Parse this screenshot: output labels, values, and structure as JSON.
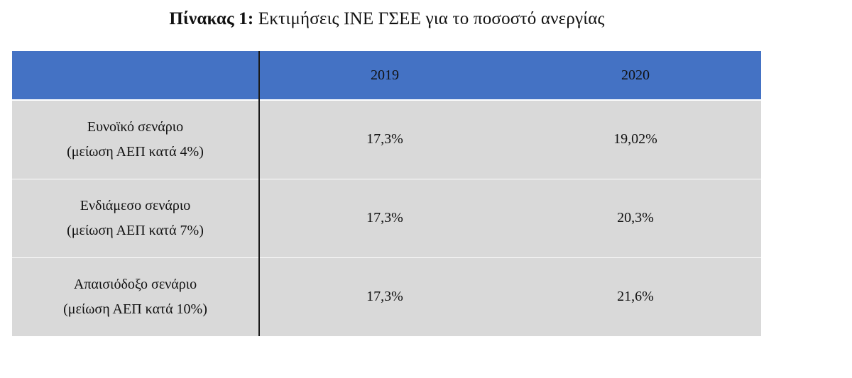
{
  "caption": {
    "label": "Πίνακας 1:",
    "title": "Εκτιμήσεις ΙΝΕ ΓΣΕΕ για το ποσοστό ανεργίας"
  },
  "table": {
    "header": {
      "corner": "",
      "years": [
        "2019",
        "2020"
      ]
    },
    "rows": [
      {
        "name": "Ευνοϊκό σενάριο",
        "note": "(μείωση ΑΕΠ κατά 4%)",
        "values": [
          "17,3%",
          "19,02%"
        ]
      },
      {
        "name": "Ενδιάμεσο σενάριο",
        "note": "(μείωση ΑΕΠ κατά 7%)",
        "values": [
          "17,3%",
          "20,3%"
        ]
      },
      {
        "name": "Απαισιόδοξο σενάριο",
        "note": "(μείωση ΑΕΠ κατά 10%)",
        "values": [
          "17,3%",
          "21,6%"
        ]
      }
    ]
  },
  "colors": {
    "header_fill": "#4472c4",
    "row_fill": "#d9d9d9"
  }
}
